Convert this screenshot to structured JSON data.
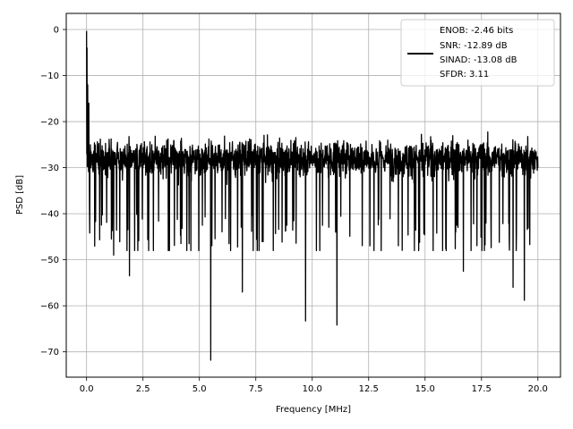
{
  "chart_data": {
    "type": "line",
    "title": "",
    "xlabel": "Frequency [MHz]",
    "ylabel": "PSD [dB]",
    "xlim": [
      -0.9,
      21.0
    ],
    "ylim": [
      -75.5,
      3.5
    ],
    "xticks": [
      0.0,
      2.5,
      5.0,
      7.5,
      10.0,
      12.5,
      15.0,
      17.5,
      20.0
    ],
    "xtick_labels": [
      "0.0",
      "2.5",
      "5.0",
      "7.5",
      "10.0",
      "12.5",
      "15.0",
      "17.5",
      "20.0"
    ],
    "yticks": [
      0,
      -10,
      -20,
      -30,
      -40,
      -50,
      -60,
      -70
    ],
    "ytick_labels": [
      "0",
      "−10",
      "−20",
      "−30",
      "−40",
      "−50",
      "−60",
      "−70"
    ],
    "grid": true,
    "legend_position": "top-right",
    "line_color": "#000000",
    "legend_lines": [
      "ENOB: -2.46 bits",
      "SNR: -12.89 dB",
      "SINAD: -13.08 dB",
      "SFDR: 3.11"
    ],
    "series": [
      {
        "x_start": 0.0,
        "x_end": 20.0,
        "points": 2000,
        "noise_mean_db": -28,
        "upper_envelope_db": -15,
        "lower_envelope_db": -40,
        "peaks": [
          [
            0.0,
            -0.3
          ],
          [
            0.02,
            -4
          ],
          [
            0.05,
            -12
          ],
          [
            0.1,
            -16
          ]
        ],
        "notches": [
          [
            0.13,
            -38.5
          ],
          [
            1.1,
            -45.5
          ],
          [
            1.2,
            -49
          ],
          [
            1.9,
            -53.5
          ],
          [
            5.5,
            -71.8
          ],
          [
            6.9,
            -57
          ],
          [
            9.7,
            -63.3
          ],
          [
            11.1,
            -64.2
          ],
          [
            16.7,
            -52.5
          ],
          [
            18.9,
            -56
          ],
          [
            19.4,
            -58.8
          ]
        ]
      }
    ]
  }
}
